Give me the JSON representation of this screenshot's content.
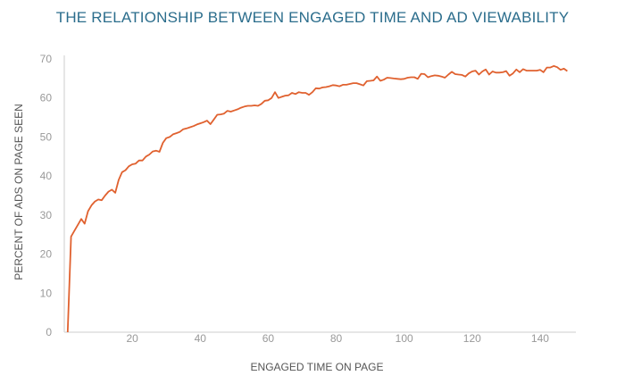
{
  "chart_data": {
    "type": "line",
    "title": "THE RELATIONSHIP BETWEEN ENGAGED TIME AND AD VIEWABILITY",
    "xlabel": "ENGAGED TIME ON PAGE",
    "ylabel": "PERCENT OF ADS ON PAGE SEEN",
    "xlim": [
      0,
      150
    ],
    "ylim": [
      0,
      70
    ],
    "xticks": [
      20,
      40,
      60,
      80,
      100,
      120,
      140
    ],
    "yticks": [
      0,
      10,
      20,
      30,
      40,
      50,
      60,
      70
    ],
    "grid": false,
    "color": "#e0612f",
    "x_start": 1,
    "values": [
      0,
      24.5,
      26,
      27.5,
      29,
      27.8,
      31,
      32.5,
      33.5,
      34,
      33.8,
      35,
      36,
      36.5,
      35.7,
      39,
      41,
      41.5,
      42.5,
      43,
      43.2,
      44,
      44,
      45,
      45.5,
      46.3,
      46.5,
      46.2,
      48.5,
      49.7,
      50,
      50.7,
      51,
      51.3,
      52,
      52.2,
      52.5,
      52.8,
      53.2,
      53.5,
      53.8,
      54.2,
      53.3,
      54.5,
      55.7,
      55.8,
      56,
      56.7,
      56.5,
      56.8,
      57.1,
      57.5,
      57.8,
      58,
      58,
      58.1,
      58,
      58.5,
      59.3,
      59.4,
      60,
      61.5,
      60,
      60.3,
      60.6,
      60.7,
      61.3,
      61,
      61.5,
      61.3,
      61.3,
      60.8,
      61.5,
      62.5,
      62.4,
      62.7,
      62.8,
      63,
      63.3,
      63.2,
      63,
      63.4,
      63.4,
      63.6,
      63.8,
      63.8,
      63.5,
      63.2,
      64.3,
      64.4,
      64.5,
      65.5,
      64.4,
      64.7,
      65.2,
      65.1,
      65,
      64.9,
      64.8,
      64.9,
      65.2,
      65.3,
      65.3,
      64.9,
      66.2,
      66.1,
      65.3,
      65.6,
      65.8,
      65.7,
      65.5,
      65.2,
      66,
      66.7,
      66.1,
      66,
      65.9,
      65.5,
      66.3,
      66.8,
      67,
      66,
      66.8,
      67.3,
      66,
      66.8,
      66.5,
      66.5,
      66.6,
      66.9,
      65.7,
      66.3,
      67.3,
      66.6,
      67.4,
      67,
      67,
      67,
      67,
      67.2,
      66.6,
      67.8,
      67.8,
      68.2,
      67.9,
      67.2,
      67.5,
      66.9
    ]
  }
}
